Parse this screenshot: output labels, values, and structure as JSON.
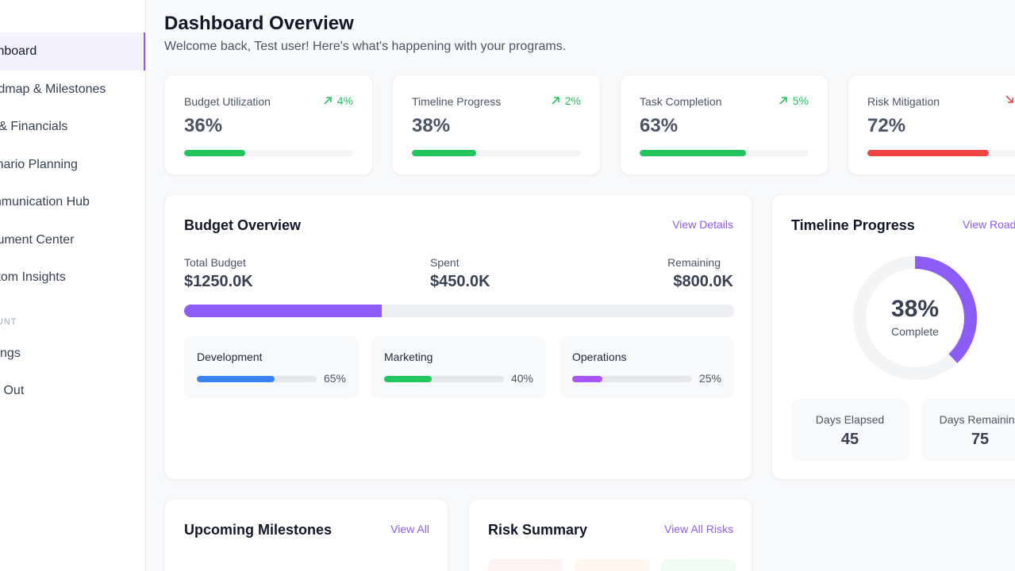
{
  "sidebar": {
    "items": [
      {
        "label": "Dashboard"
      },
      {
        "label": "Roadmap & Milestones"
      },
      {
        "label": "KPI & Financials"
      },
      {
        "label": "Scenario Planning"
      },
      {
        "label": "Communication Hub"
      },
      {
        "label": "Document Center"
      },
      {
        "label": "Custom Insights"
      }
    ],
    "section_label": "ACCOUNT",
    "account_items": [
      {
        "label": "Settings"
      },
      {
        "label": "Sign Out"
      }
    ]
  },
  "header": {
    "title": "Dashboard Overview",
    "subtitle": "Welcome back, Test user! Here's what's happening with your programs."
  },
  "kpis": [
    {
      "label": "Budget Utilization",
      "value": "36%",
      "trend": "4%",
      "trend_dir": "up",
      "progress": 36
    },
    {
      "label": "Timeline Progress",
      "value": "38%",
      "trend": "2%",
      "trend_dir": "up",
      "progress": 38
    },
    {
      "label": "Task Completion",
      "value": "63%",
      "trend": "5%",
      "trend_dir": "up",
      "progress": 63
    },
    {
      "label": "Risk Mitigation",
      "value": "72%",
      "trend": "",
      "trend_dir": "down",
      "progress": 72
    }
  ],
  "budget": {
    "title": "Budget Overview",
    "link": "View Details",
    "total_label": "Total Budget",
    "total_value": "$1250.0K",
    "spent_label": "Spent",
    "spent_value": "$450.0K",
    "remaining_label": "Remaining",
    "remaining_value": "$800.0K",
    "spent_fraction": 0.36,
    "categories": [
      {
        "label": "Development",
        "pct": "65%",
        "progress": 65,
        "color": "#3b82f6"
      },
      {
        "label": "Marketing",
        "pct": "40%",
        "progress": 40,
        "color": "#22c55e"
      },
      {
        "label": "Operations",
        "pct": "25%",
        "progress": 25,
        "color": "#a855f7"
      }
    ]
  },
  "timeline": {
    "title": "Timeline Progress",
    "link": "View Roadmap",
    "percent": "38%",
    "percent_value": 38,
    "complete_label": "Complete",
    "elapsed_label": "Days Elapsed",
    "elapsed_value": "45",
    "remaining_label": "Days Remaining",
    "remaining_value": "75"
  },
  "milestones": {
    "title": "Upcoming Milestones",
    "link": "View All"
  },
  "risks": {
    "title": "Risk Summary",
    "link": "View All Risks"
  },
  "colors": {
    "accent": "#8b5cf6",
    "success": "#22c55e",
    "danger": "#ef4444"
  }
}
